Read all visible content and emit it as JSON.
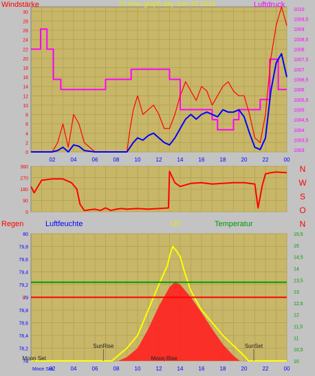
{
  "wind_panel": {
    "left_label": "Windstärke",
    "center_label": "24 hour graph day   Juni 10 2016",
    "right_label": "Luftdruck",
    "left_ticks": [
      "30",
      "28",
      "26",
      "24",
      "22",
      "20",
      "18",
      "16",
      "14",
      "12",
      "10",
      "8",
      "6",
      "4",
      "2",
      "0"
    ],
    "right_ticks": [
      "1010",
      "1009,5",
      "1009",
      "1008,5",
      "1008",
      "1007,5",
      "1007",
      "1006,5",
      "1006",
      "1005,5",
      "1005",
      "1004,5",
      "1004",
      "1003,5",
      "1003"
    ],
    "x_ticks": [
      "02",
      "04",
      "06",
      "08",
      "10",
      "12",
      "14",
      "16",
      "18",
      "20",
      "22",
      "00"
    ]
  },
  "direction_panel": {
    "left_ticks": [
      "360",
      "270",
      "180",
      "90",
      "0"
    ],
    "compass": [
      "N",
      "W",
      "S",
      "O",
      "N"
    ],
    "x_ticks": [
      "02",
      "04",
      "06",
      "08",
      "10",
      "12",
      "14",
      "16",
      "18",
      "20",
      "22",
      "00"
    ]
  },
  "bottom_panel": {
    "labels": {
      "regen": "Regen",
      "luftfeuchte": "Luftfeuchte",
      "uv": "UV",
      "temperatur": "Temperatur"
    },
    "left_ticks": [
      "80",
      "79,8",
      "79,6",
      "79,4",
      "79,2",
      "79",
      "78,8",
      "78,6",
      "78,4",
      "78,2",
      "78"
    ],
    "rain_tick": "0",
    "right_ticks": [
      "15,5",
      "15",
      "14,5",
      "14",
      "13,5",
      "13",
      "12,5",
      "12",
      "11,5",
      "11",
      "10,5",
      "10"
    ],
    "x_ticks": [
      "02",
      "04",
      "06",
      "08",
      "10",
      "12",
      "14",
      "16",
      "18",
      "20",
      "22",
      "00"
    ],
    "events": {
      "moonset": "Moon Set",
      "sunrise": "SunRise",
      "moonrise": "Moon Rise",
      "sunset": "SunSet"
    },
    "x_first_label": "Moon Set"
  },
  "colors": {
    "plot_bg": "#c8b768",
    "frame_bg": "#c3c3c3",
    "gust": "#ff0000",
    "wind": "#0000ff",
    "pressure": "#ff00ff",
    "direction": "#ff0000",
    "temperature": "#009a00",
    "rain": "#ff0000",
    "uv": "#ffff00"
  },
  "chart_data": [
    {
      "type": "line",
      "title": "24 hour graph day   Juni 10 2016",
      "xlabel": "",
      "ylabel": "Windstärke",
      "y2label": "Luftdruck",
      "ylim": [
        0,
        31
      ],
      "y2lim": [
        1002.9,
        1010.1
      ],
      "xlim": [
        0,
        24
      ],
      "series": [
        {
          "name": "Windstärke",
          "axis": "left",
          "x": [
            0,
            1,
            2,
            2.5,
            3,
            3.5,
            4,
            4.5,
            5,
            6,
            7,
            8,
            9,
            9.3,
            9.6,
            10,
            10.5,
            11,
            11.5,
            12,
            12.5,
            13,
            13.5,
            14,
            14.5,
            15,
            15.5,
            16,
            16.5,
            17,
            17.5,
            18,
            18.5,
            19,
            19.5,
            20,
            20.5,
            21,
            21.5,
            22,
            22.5,
            23,
            23.5,
            24
          ],
          "y": [
            0,
            0,
            0,
            0.3,
            1,
            0,
            1.5,
            1.2,
            0.3,
            0,
            0,
            0,
            0,
            1,
            2,
            3,
            2.5,
            3.5,
            4,
            3,
            2,
            1.5,
            3,
            5,
            7,
            8,
            7,
            8,
            8.5,
            8,
            7.5,
            9,
            8.5,
            8.5,
            9,
            7.5,
            4,
            1,
            0.5,
            3,
            13,
            19,
            21,
            16
          ]
        },
        {
          "name": "Windböen",
          "axis": "left",
          "x": [
            0,
            1,
            2,
            2.5,
            3,
            3.5,
            4,
            4.5,
            5,
            6,
            7,
            8,
            9,
            9.3,
            9.6,
            10,
            10.5,
            11,
            11.5,
            12,
            12.5,
            13,
            13.5,
            14,
            14.5,
            15,
            15.5,
            16,
            16.5,
            17,
            17.5,
            18,
            18.5,
            19,
            19.5,
            20,
            20.5,
            21,
            21.5,
            22,
            22.5,
            23,
            23.5,
            24
          ],
          "y": [
            0,
            0,
            0,
            2,
            6,
            1,
            8,
            6,
            2,
            0,
            0,
            0,
            0,
            5,
            9,
            12,
            8,
            9,
            10,
            8,
            5,
            5,
            8,
            12,
            15,
            13,
            11,
            14,
            13,
            10,
            12,
            14,
            15,
            13,
            12,
            12,
            8,
            3,
            2,
            8,
            20,
            27,
            31,
            27
          ]
        },
        {
          "name": "Luftdruck",
          "axis": "right",
          "x": [
            0,
            0.9,
            0.9,
            1.5,
            1.5,
            2.1,
            2.1,
            2.8,
            2.8,
            7,
            7,
            9.4,
            9.4,
            13,
            13,
            14,
            14,
            17,
            17,
            17.5,
            17.5,
            19,
            19,
            19.5,
            19.5,
            21.5,
            21.5,
            22.4,
            22.4,
            23.2,
            23.2,
            24
          ],
          "y": [
            1008,
            1008,
            1009,
            1009,
            1008,
            1008,
            1006.5,
            1006.5,
            1006,
            1006,
            1006.5,
            1006.5,
            1007,
            1007,
            1006.5,
            1006.5,
            1005,
            1005,
            1004.5,
            1004.5,
            1004,
            1004,
            1004.5,
            1004.5,
            1005,
            1005,
            1005.5,
            1005.5,
            1007.5,
            1007.5,
            1006,
            1006
          ]
        }
      ]
    },
    {
      "type": "line",
      "title": "",
      "ylabel": "",
      "ylim": [
        0,
        360
      ],
      "xlim": [
        0,
        24
      ],
      "series": [
        {
          "name": "Windrichtung",
          "x": [
            0,
            0.3,
            1,
            2,
            3,
            3.8,
            4.3,
            4.6,
            5,
            6,
            6.5,
            7,
            7.5,
            8,
            8.5,
            9,
            10,
            11,
            12,
            12.9,
            13,
            13.5,
            14,
            15,
            16,
            17,
            18,
            19,
            20,
            21,
            21.3,
            21.7,
            22,
            22.5,
            23,
            24
          ],
          "y": [
            200,
            150,
            250,
            260,
            260,
            230,
            180,
            60,
            10,
            20,
            10,
            30,
            10,
            20,
            25,
            20,
            25,
            20,
            25,
            30,
            320,
            230,
            200,
            225,
            230,
            220,
            225,
            230,
            230,
            220,
            30,
            210,
            300,
            310,
            315,
            310
          ]
        }
      ]
    },
    {
      "type": "area",
      "title": "",
      "ylabel": "Luftfeuchte",
      "ylim": [
        78,
        80
      ],
      "y2label": "Temperatur",
      "y2lim": [
        10,
        15.5
      ],
      "xlim": [
        0,
        24
      ],
      "series": [
        {
          "name": "Temperatur",
          "axis": "right",
          "x": [
            0,
            24
          ],
          "y": [
            13.4,
            13.4
          ]
        },
        {
          "name": "Regen",
          "axis": "rain",
          "x": [
            0,
            24
          ],
          "y": [
            0,
            0
          ]
        },
        {
          "name": "UV",
          "axis": "uv",
          "x": [
            0,
            7.6,
            8,
            9,
            10,
            11,
            12,
            12.8,
            13.1,
            13.3,
            13.6,
            14,
            14.4,
            15,
            16,
            17,
            18,
            19,
            20,
            20.4,
            24
          ],
          "y": [
            0,
            0,
            0.3,
            1,
            2,
            4,
            6,
            7.5,
            8.5,
            9,
            8.7,
            8.2,
            7,
            5.5,
            4,
            3,
            2,
            1.2,
            0.4,
            0,
            0
          ]
        },
        {
          "name": "Strahlung",
          "axis": "uv",
          "x": [
            0,
            8.2,
            9,
            10,
            11,
            12,
            13,
            13.5,
            14,
            15,
            16,
            17,
            18,
            19,
            19.6,
            24
          ],
          "y": [
            0,
            0,
            0.3,
            1,
            2.5,
            4.3,
            5.8,
            6.2,
            6,
            5,
            3.8,
            2.5,
            1.3,
            0.4,
            0,
            0
          ]
        }
      ]
    }
  ]
}
